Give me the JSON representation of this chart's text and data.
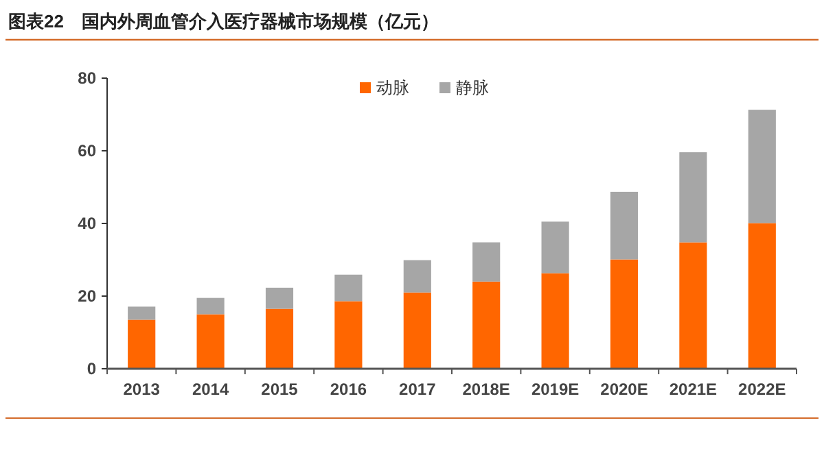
{
  "chart_data": {
    "type": "bar",
    "title": "图表22　国内外周血管介入医疗器械市场规模（亿元）",
    "categories": [
      "2013",
      "2014",
      "2015",
      "2016",
      "2017",
      "2018E",
      "2019E",
      "2020E",
      "2021E",
      "2022E"
    ],
    "series": [
      {
        "name": "动脉",
        "color": "#ff6600",
        "values": [
          13.5,
          15.0,
          16.5,
          18.6,
          21.0,
          24.0,
          26.3,
          30.1,
          34.8,
          40.1
        ]
      },
      {
        "name": "静脉",
        "color": "#a6a6a6",
        "values": [
          3.6,
          4.5,
          5.8,
          7.3,
          8.9,
          10.8,
          14.2,
          18.6,
          24.8,
          31.2
        ]
      }
    ],
    "stacked": true,
    "ylim": [
      0,
      80
    ],
    "yticks": [
      0,
      20,
      40,
      60,
      80
    ],
    "grid": false,
    "legend": "top right"
  }
}
